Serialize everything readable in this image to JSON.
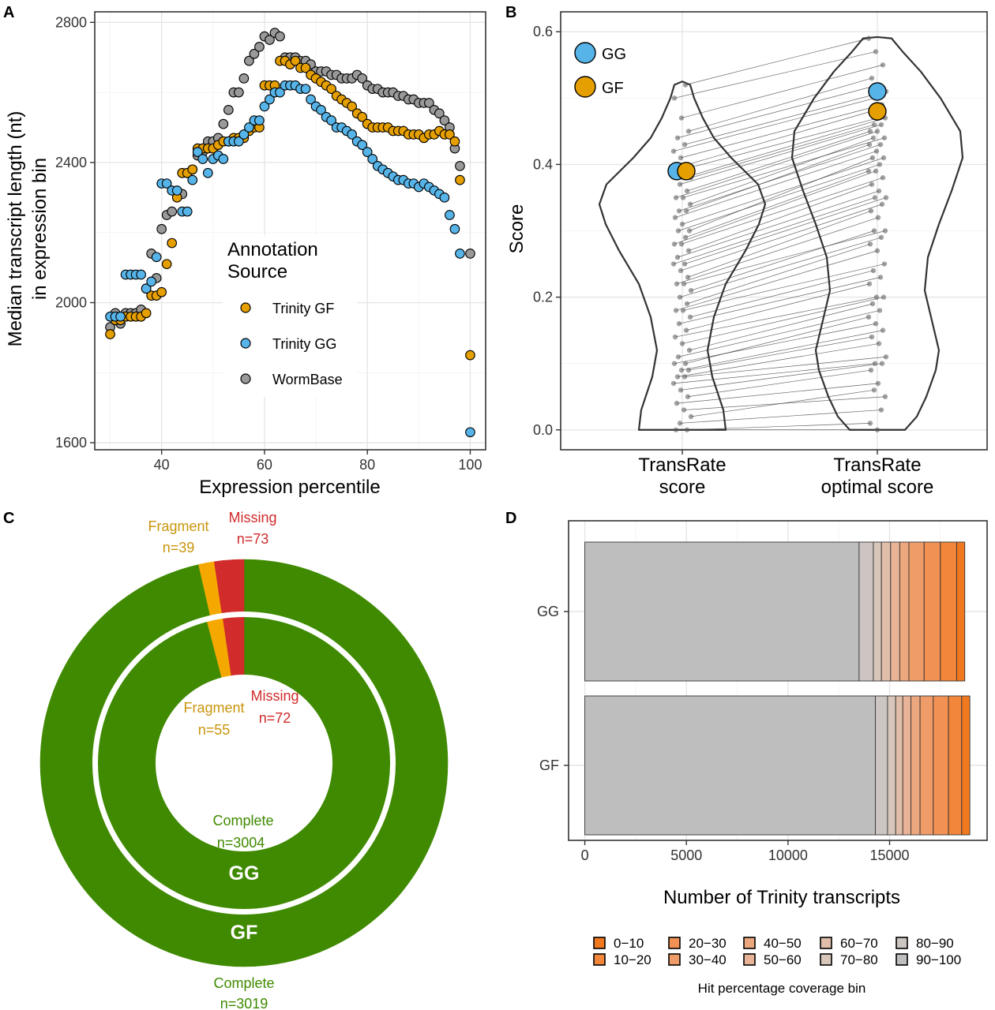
{
  "panels": {
    "a": "A",
    "b": "B",
    "c": "C",
    "d": "D"
  },
  "colors": {
    "trinity_gf": "#E69F00",
    "trinity_gg": "#56B4E9",
    "wormbase": "#999999",
    "complete": "#3F8A00",
    "fragment": "#F5A800",
    "missing": "#D12B2B",
    "fragment_text": "#C9950C"
  },
  "chart_data": [
    {
      "panel": "A",
      "type": "scatter",
      "xlabel": "Expression percentile",
      "ylabel": [
        "Median transcript length (nt)",
        "in expression bin"
      ],
      "xlim": [
        27,
        103
      ],
      "ylim": [
        1580,
        2830
      ],
      "xticks": [
        40,
        60,
        80,
        100
      ],
      "yticks": [
        1600,
        2000,
        2400,
        2800
      ],
      "grid": true,
      "legend": {
        "title": [
          "Annotation",
          "Source"
        ],
        "position": "inside-center",
        "entries": [
          "Trinity GF",
          "Trinity GG",
          "WormBase"
        ]
      },
      "series": [
        {
          "name": "Trinity GF",
          "color_key": "trinity_gf",
          "x": [
            30,
            31,
            32,
            33,
            34,
            35,
            36,
            37,
            38,
            39,
            40,
            41,
            42,
            43,
            44,
            45,
            46,
            47,
            48,
            49,
            50,
            51,
            52,
            53,
            54,
            55,
            56,
            57,
            58,
            59,
            60,
            61,
            62,
            63,
            64,
            65,
            66,
            67,
            68,
            69,
            70,
            71,
            72,
            73,
            74,
            75,
            76,
            77,
            78,
            79,
            80,
            81,
            82,
            83,
            84,
            85,
            86,
            87,
            88,
            89,
            90,
            91,
            92,
            93,
            94,
            95,
            96,
            97,
            98,
            100
          ],
          "y": [
            1910,
            1950,
            1950,
            1960,
            1960,
            1960,
            1960,
            1970,
            2020,
            2020,
            2030,
            2110,
            2170,
            2300,
            2370,
            2370,
            2380,
            2440,
            2440,
            2440,
            2440,
            2450,
            2460,
            2460,
            2470,
            2470,
            2470,
            2490,
            2500,
            2500,
            2620,
            2620,
            2620,
            2690,
            2690,
            2680,
            2690,
            2670,
            2670,
            2650,
            2640,
            2630,
            2620,
            2610,
            2590,
            2580,
            2570,
            2560,
            2540,
            2530,
            2510,
            2500,
            2500,
            2500,
            2500,
            2490,
            2490,
            2490,
            2480,
            2480,
            2480,
            2470,
            2480,
            2480,
            2490,
            2480,
            2480,
            2460,
            2350,
            1850
          ]
        },
        {
          "name": "Trinity GG",
          "color_key": "trinity_gg",
          "x": [
            30,
            31,
            32,
            33,
            34,
            35,
            36,
            37,
            38,
            39,
            40,
            41,
            42,
            43,
            44,
            45,
            46,
            47,
            48,
            49,
            50,
            51,
            52,
            53,
            54,
            55,
            56,
            57,
            58,
            59,
            60,
            61,
            62,
            63,
            64,
            65,
            66,
            67,
            68,
            69,
            70,
            71,
            72,
            73,
            74,
            75,
            76,
            77,
            78,
            79,
            80,
            81,
            82,
            83,
            84,
            85,
            86,
            87,
            88,
            89,
            90,
            91,
            92,
            93,
            94,
            95,
            96,
            97,
            98,
            100
          ],
          "y": [
            1960,
            1960,
            1960,
            2080,
            2080,
            2080,
            2080,
            2040,
            2060,
            2130,
            2340,
            2340,
            2320,
            2320,
            2260,
            2260,
            2350,
            2430,
            2410,
            2370,
            2410,
            2420,
            2410,
            2460,
            2460,
            2460,
            2480,
            2500,
            2520,
            2520,
            2560,
            2580,
            2600,
            2600,
            2620,
            2620,
            2620,
            2610,
            2610,
            2580,
            2560,
            2550,
            2530,
            2520,
            2500,
            2500,
            2490,
            2480,
            2460,
            2450,
            2430,
            2410,
            2390,
            2380,
            2370,
            2360,
            2350,
            2350,
            2340,
            2340,
            2330,
            2340,
            2330,
            2320,
            2310,
            2300,
            2250,
            2210,
            2140,
            1630
          ]
        },
        {
          "name": "WormBase",
          "color_key": "wormbase",
          "x": [
            30,
            31,
            32,
            33,
            34,
            35,
            36,
            37,
            38,
            39,
            40,
            41,
            42,
            43,
            44,
            45,
            46,
            47,
            48,
            49,
            50,
            51,
            52,
            53,
            54,
            55,
            56,
            57,
            58,
            59,
            60,
            61,
            62,
            63,
            64,
            65,
            66,
            67,
            68,
            69,
            70,
            71,
            72,
            73,
            74,
            75,
            76,
            77,
            78,
            79,
            80,
            81,
            82,
            83,
            84,
            85,
            86,
            87,
            88,
            89,
            90,
            91,
            92,
            93,
            94,
            95,
            96,
            97,
            98,
            100
          ],
          "y": [
            1930,
            1970,
            1940,
            1970,
            1970,
            1970,
            1980,
            2040,
            2140,
            2070,
            2210,
            2250,
            2260,
            2310,
            2310,
            2370,
            2380,
            2420,
            2430,
            2460,
            2460,
            2470,
            2510,
            2550,
            2600,
            2600,
            2640,
            2690,
            2710,
            2730,
            2760,
            2750,
            2770,
            2760,
            2700,
            2700,
            2700,
            2690,
            2690,
            2680,
            2660,
            2660,
            2660,
            2650,
            2650,
            2640,
            2640,
            2640,
            2650,
            2640,
            2620,
            2610,
            2610,
            2600,
            2600,
            2600,
            2590,
            2590,
            2580,
            2580,
            2570,
            2570,
            2570,
            2550,
            2540,
            2520,
            2500,
            2440,
            2390,
            2140
          ]
        }
      ]
    },
    {
      "panel": "B",
      "type": "violin",
      "ylabel": "Score",
      "ylim": [
        -0.03,
        0.63
      ],
      "yticks": [
        0.0,
        0.2,
        0.4,
        0.6
      ],
      "yticklabels": [
        "0.0",
        "0.2",
        "0.4",
        "0.6"
      ],
      "categories": [
        [
          "TransRate",
          "score"
        ],
        [
          "TransRate",
          "optimal score"
        ]
      ],
      "grid": true,
      "legend": {
        "position": "top-left",
        "entries": [
          "GG",
          "GF"
        ]
      },
      "highlights": [
        {
          "name": "GG",
          "color_key": "trinity_gg",
          "values": [
            0.39,
            0.51
          ]
        },
        {
          "name": "GF",
          "color_key": "trinity_gf",
          "values": [
            0.39,
            0.48
          ]
        }
      ],
      "paired_points": {
        "score": [
          0.0,
          0.0,
          0.01,
          0.02,
          0.03,
          0.04,
          0.05,
          0.06,
          0.07,
          0.08,
          0.08,
          0.09,
          0.09,
          0.1,
          0.1,
          0.11,
          0.12,
          0.13,
          0.14,
          0.15,
          0.16,
          0.17,
          0.18,
          0.18,
          0.19,
          0.2,
          0.21,
          0.22,
          0.22,
          0.23,
          0.24,
          0.25,
          0.25,
          0.26,
          0.27,
          0.28,
          0.28,
          0.29,
          0.3,
          0.3,
          0.31,
          0.32,
          0.33,
          0.33,
          0.34,
          0.35,
          0.35,
          0.36,
          0.37,
          0.38,
          0.38,
          0.39,
          0.4,
          0.41,
          0.42,
          0.43,
          0.44,
          0.45,
          0.47,
          0.5,
          0.52
        ],
        "optimal": [
          0.0,
          0.01,
          0.03,
          0.06,
          0.05,
          0.07,
          0.09,
          0.1,
          0.1,
          0.11,
          0.13,
          0.14,
          0.15,
          0.16,
          0.17,
          0.18,
          0.19,
          0.2,
          0.2,
          0.22,
          0.23,
          0.24,
          0.25,
          0.27,
          0.28,
          0.29,
          0.3,
          0.3,
          0.32,
          0.33,
          0.34,
          0.35,
          0.35,
          0.36,
          0.37,
          0.38,
          0.39,
          0.39,
          0.4,
          0.41,
          0.41,
          0.42,
          0.43,
          0.43,
          0.44,
          0.44,
          0.45,
          0.45,
          0.46,
          0.46,
          0.47,
          0.47,
          0.48,
          0.49,
          0.5,
          0.51,
          0.52,
          0.53,
          0.55,
          0.57,
          0.59
        ]
      }
    },
    {
      "panel": "C",
      "type": "pie",
      "rings": [
        {
          "name": "GF",
          "position": "outer",
          "slices": [
            {
              "label": "Complete",
              "value": 3019,
              "text": "n=3019",
              "color_key": "complete"
            },
            {
              "label": "Fragment",
              "value": 39,
              "text": "n=39",
              "color_key": "fragment"
            },
            {
              "label": "Missing",
              "value": 73,
              "text": "n=73",
              "color_key": "missing"
            }
          ]
        },
        {
          "name": "GG",
          "position": "inner",
          "slices": [
            {
              "label": "Complete",
              "value": 3004,
              "text": "n=3004",
              "color_key": "complete"
            },
            {
              "label": "Fragment",
              "value": 55,
              "text": "n=55",
              "color_key": "fragment"
            },
            {
              "label": "Missing",
              "value": 72,
              "text": "n=72",
              "color_key": "missing"
            }
          ]
        }
      ]
    },
    {
      "panel": "D",
      "type": "bar",
      "orientation": "horizontal",
      "stacked": true,
      "xlabel": "Number of Trinity transcripts",
      "xlim": [
        -800,
        19800
      ],
      "xticks": [
        0,
        5000,
        10000,
        15000
      ],
      "categories": [
        "GG",
        "GF"
      ],
      "grid": true,
      "legend": {
        "title": "Hit percentage coverage bin",
        "position": "bottom",
        "entries": [
          "0−10",
          "10−20",
          "20−30",
          "30−40",
          "40−50",
          "50−60",
          "60−70",
          "70−80",
          "80−90",
          "90−100"
        ],
        "colors": [
          "#F0781E",
          "#F2863A",
          "#F29154",
          "#F09C68",
          "#EDA77E",
          "#E8B396",
          "#E0BEAA",
          "#D8C6BA",
          "#CCC5C1",
          "#BEBEBE"
        ]
      },
      "series": [
        {
          "name": "90−100",
          "values": [
            13500,
            14300
          ]
        },
        {
          "name": "80−90",
          "values": [
            700,
            600
          ]
        },
        {
          "name": "70−80",
          "values": [
            400,
            400
          ]
        },
        {
          "name": "60−70",
          "values": [
            450,
            350
          ]
        },
        {
          "name": "50−60",
          "values": [
            450,
            400
          ]
        },
        {
          "name": "40−50",
          "values": [
            450,
            450
          ]
        },
        {
          "name": "30−40",
          "values": [
            750,
            650
          ]
        },
        {
          "name": "20−30",
          "values": [
            800,
            750
          ]
        },
        {
          "name": "10−20",
          "values": [
            800,
            650
          ]
        },
        {
          "name": "0−10",
          "values": [
            400,
            400
          ]
        }
      ]
    }
  ]
}
